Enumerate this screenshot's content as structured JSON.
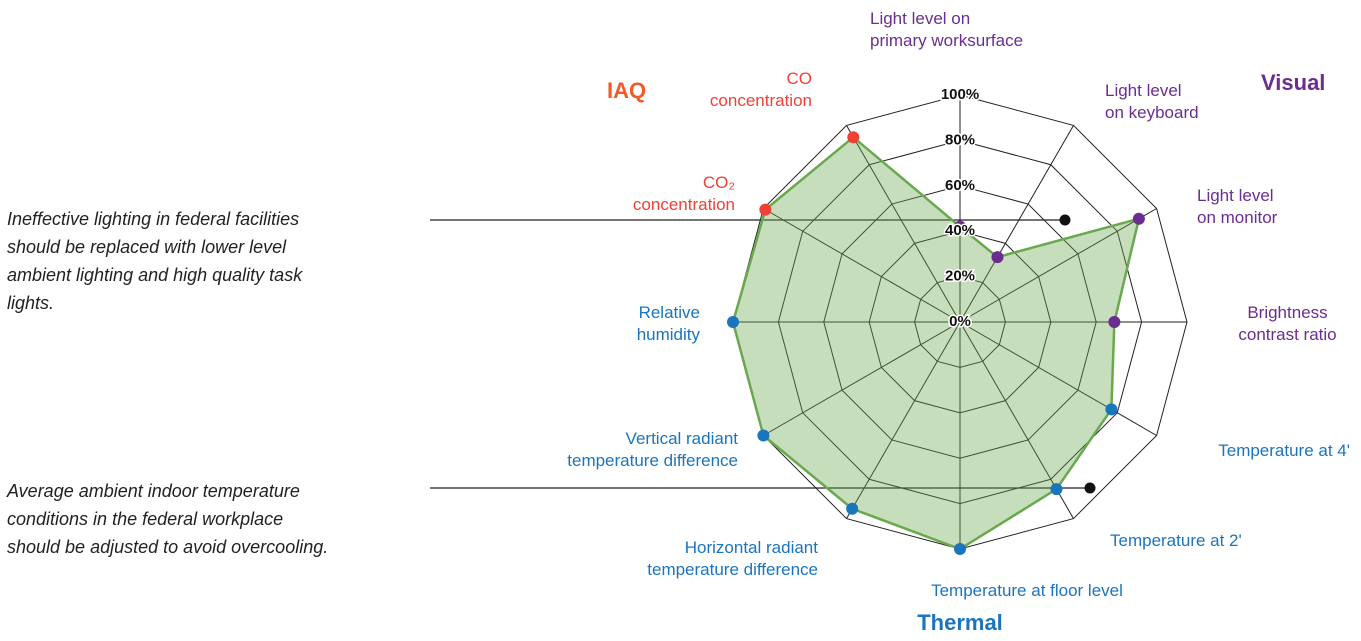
{
  "chart_data": {
    "type": "radar",
    "categories": [
      "Light level on\nprimary worksurface",
      "Light level\non keyboard",
      "Light level\non monitor",
      "Brightness\ncontrast ratio",
      "Temperature at 4'",
      "Temperature at 2'",
      "Temperature at floor level",
      "Horizontal radiant\ntemperature difference",
      "Vertical radiant\ntemperature difference",
      "Relative\nhumidity",
      "CO₂\nconcentration",
      "CO\nconcentration"
    ],
    "category_colors": [
      "#6b2d8f",
      "#6b2d8f",
      "#6b2d8f",
      "#6b2d8f",
      "#1b75bc",
      "#1b75bc",
      "#1b75bc",
      "#1b75bc",
      "#1b75bc",
      "#1b75bc",
      "#ef4136",
      "#ef4136"
    ],
    "series": [
      {
        "color": "#6aa84f",
        "values": [
          42,
          33,
          91,
          68,
          77,
          85,
          100,
          95,
          100,
          100,
          99,
          94
        ]
      }
    ],
    "ylim": [
      0,
      100
    ],
    "yticks": [
      {
        "value": 0,
        "label": "0%"
      },
      {
        "value": 20,
        "label": "20%"
      },
      {
        "value": 40,
        "label": "40%"
      },
      {
        "value": 60,
        "label": "60%"
      },
      {
        "value": 80,
        "label": "80%"
      },
      {
        "value": 100,
        "label": "100%"
      }
    ],
    "grid": true,
    "groups": [
      {
        "name": "IAQ",
        "color": "#f15a29"
      },
      {
        "name": "Visual",
        "color": "#6b2d8f"
      },
      {
        "name": "Thermal",
        "color": "#1b75bc"
      }
    ],
    "annotations": [
      "Ineffective lighting in federal facilities\nshould be replaced with lower level\nambient lighting and high quality task\nlights.",
      "Average ambient indoor temperature\nconditions in the federal workplace\nshould be adjusted to avoid overcooling."
    ]
  }
}
